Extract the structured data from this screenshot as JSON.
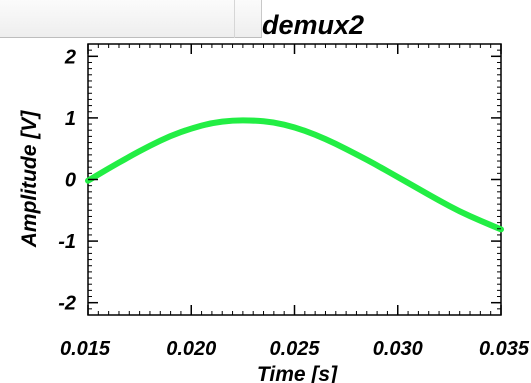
{
  "window": {
    "tab_strip": ""
  },
  "chart_data": {
    "type": "line",
    "title": "demux2",
    "xlabel": "Time [s]",
    "ylabel": "Amplitude [V]",
    "xlim": [
      0.015,
      0.035
    ],
    "ylim": [
      -2.2,
      2.2
    ],
    "x_ticks": [
      0.015,
      0.02,
      0.025,
      0.03,
      0.035
    ],
    "x_tick_labels": [
      "0.015",
      "0.020",
      "0.025",
      "0.030",
      "0.035"
    ],
    "y_ticks": [
      -2,
      -1,
      0,
      1,
      2
    ],
    "y_tick_labels": [
      "-2",
      "-1",
      "0",
      "1",
      "2"
    ],
    "grid": false,
    "series": [
      {
        "color": "#22ee44",
        "x": [
          0.015,
          0.016,
          0.017,
          0.018,
          0.019,
          0.02,
          0.021,
          0.022,
          0.023,
          0.024,
          0.025,
          0.026,
          0.027,
          0.028,
          0.029,
          0.03,
          0.031,
          0.032,
          0.033,
          0.034,
          0.035
        ],
        "y": [
          -0.02,
          0.18,
          0.37,
          0.55,
          0.71,
          0.83,
          0.92,
          0.96,
          0.96,
          0.93,
          0.85,
          0.73,
          0.58,
          0.41,
          0.23,
          0.04,
          -0.15,
          -0.34,
          -0.52,
          -0.67,
          -0.81
        ]
      }
    ]
  }
}
